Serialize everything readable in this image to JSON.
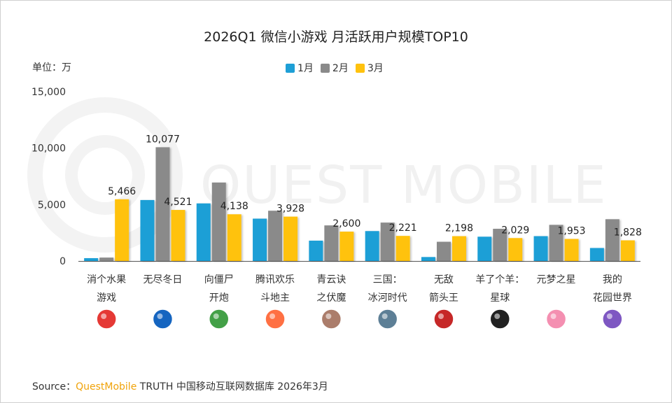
{
  "title": "2026Q1 微信小游戏 月活跃用户规模TOP10",
  "unit_label": "单位：万",
  "legend": [
    {
      "label": "1月",
      "color": "#1e9fd6"
    },
    {
      "label": "2月",
      "color": "#8a8a8a"
    },
    {
      "label": "3月",
      "color": "#ffc20e"
    }
  ],
  "source": {
    "prefix": "Source：",
    "brand": "QuestMobile",
    "rest": "TRUTH 中国移动互联网数据库 2026年3月"
  },
  "watermark": "QUEST MOBILE",
  "chart_data": {
    "type": "bar",
    "title": "2026Q1 微信小游戏 月活跃用户规模TOP10",
    "ylabel": "单位：万",
    "xlabel": "",
    "ylim": [
      0,
      15000
    ],
    "yticks": [
      0,
      5000,
      10000,
      15000
    ],
    "ytick_labels": [
      "0",
      "5,000",
      "10,000",
      "15,000"
    ],
    "categories": [
      [
        "消个水果",
        "游戏"
      ],
      [
        "无尽冬日"
      ],
      [
        "向僵尸",
        "开炮"
      ],
      [
        "腾讯欢乐",
        "斗地主"
      ],
      [
        "青云诀",
        "之伏魔"
      ],
      [
        "三国：",
        "冰河时代"
      ],
      [
        "无敌",
        "箭头王"
      ],
      [
        "羊了个羊：",
        "星球"
      ],
      [
        "元梦之星"
      ],
      [
        "我的",
        "花园世界"
      ]
    ],
    "icons": [
      "fruit-game-icon",
      "globe-icon",
      "zombie-cannon-icon",
      "landlord-icon",
      "qingyun-icon",
      "three-kingdoms-icon",
      "arrow-king-icon",
      "sheep-icon",
      "yuanmeng-icon",
      "garden-icon"
    ],
    "icon_colors": [
      "#e53935",
      "#1565c0",
      "#43a047",
      "#ff7043",
      "#ab7d6b",
      "#5d7f96",
      "#c62828",
      "#212121",
      "#f48fb1",
      "#7e57c2"
    ],
    "series": [
      {
        "name": "1月",
        "color": "#1e9fd6",
        "values": [
          250,
          5400,
          5100,
          3750,
          1800,
          2650,
          350,
          2150,
          2200,
          1150
        ]
      },
      {
        "name": "2月",
        "color": "#8a8a8a",
        "values": [
          300,
          10077,
          6950,
          4450,
          3150,
          3400,
          1700,
          2850,
          3200,
          3700
        ]
      },
      {
        "name": "3月",
        "color": "#ffc20e",
        "values": [
          5466,
          4521,
          4138,
          3928,
          2600,
          2221,
          2198,
          2029,
          1953,
          1828
        ]
      }
    ],
    "data_labels": [
      {
        "category_index": 0,
        "series_index": 2,
        "text": "5,466"
      },
      {
        "category_index": 1,
        "series_index": 1,
        "text": "10,077"
      },
      {
        "category_index": 1,
        "series_index": 2,
        "text": "4,521"
      },
      {
        "category_index": 2,
        "series_index": 2,
        "text": "4,138"
      },
      {
        "category_index": 3,
        "series_index": 2,
        "text": "3,928"
      },
      {
        "category_index": 4,
        "series_index": 2,
        "text": "2,600"
      },
      {
        "category_index": 5,
        "series_index": 2,
        "text": "2,221"
      },
      {
        "category_index": 6,
        "series_index": 2,
        "text": "2,198"
      },
      {
        "category_index": 7,
        "series_index": 2,
        "text": "2,029"
      },
      {
        "category_index": 8,
        "series_index": 2,
        "text": "1,953"
      },
      {
        "category_index": 9,
        "series_index": 2,
        "text": "1,828"
      }
    ],
    "grid": false,
    "legend_position": "top-center"
  }
}
